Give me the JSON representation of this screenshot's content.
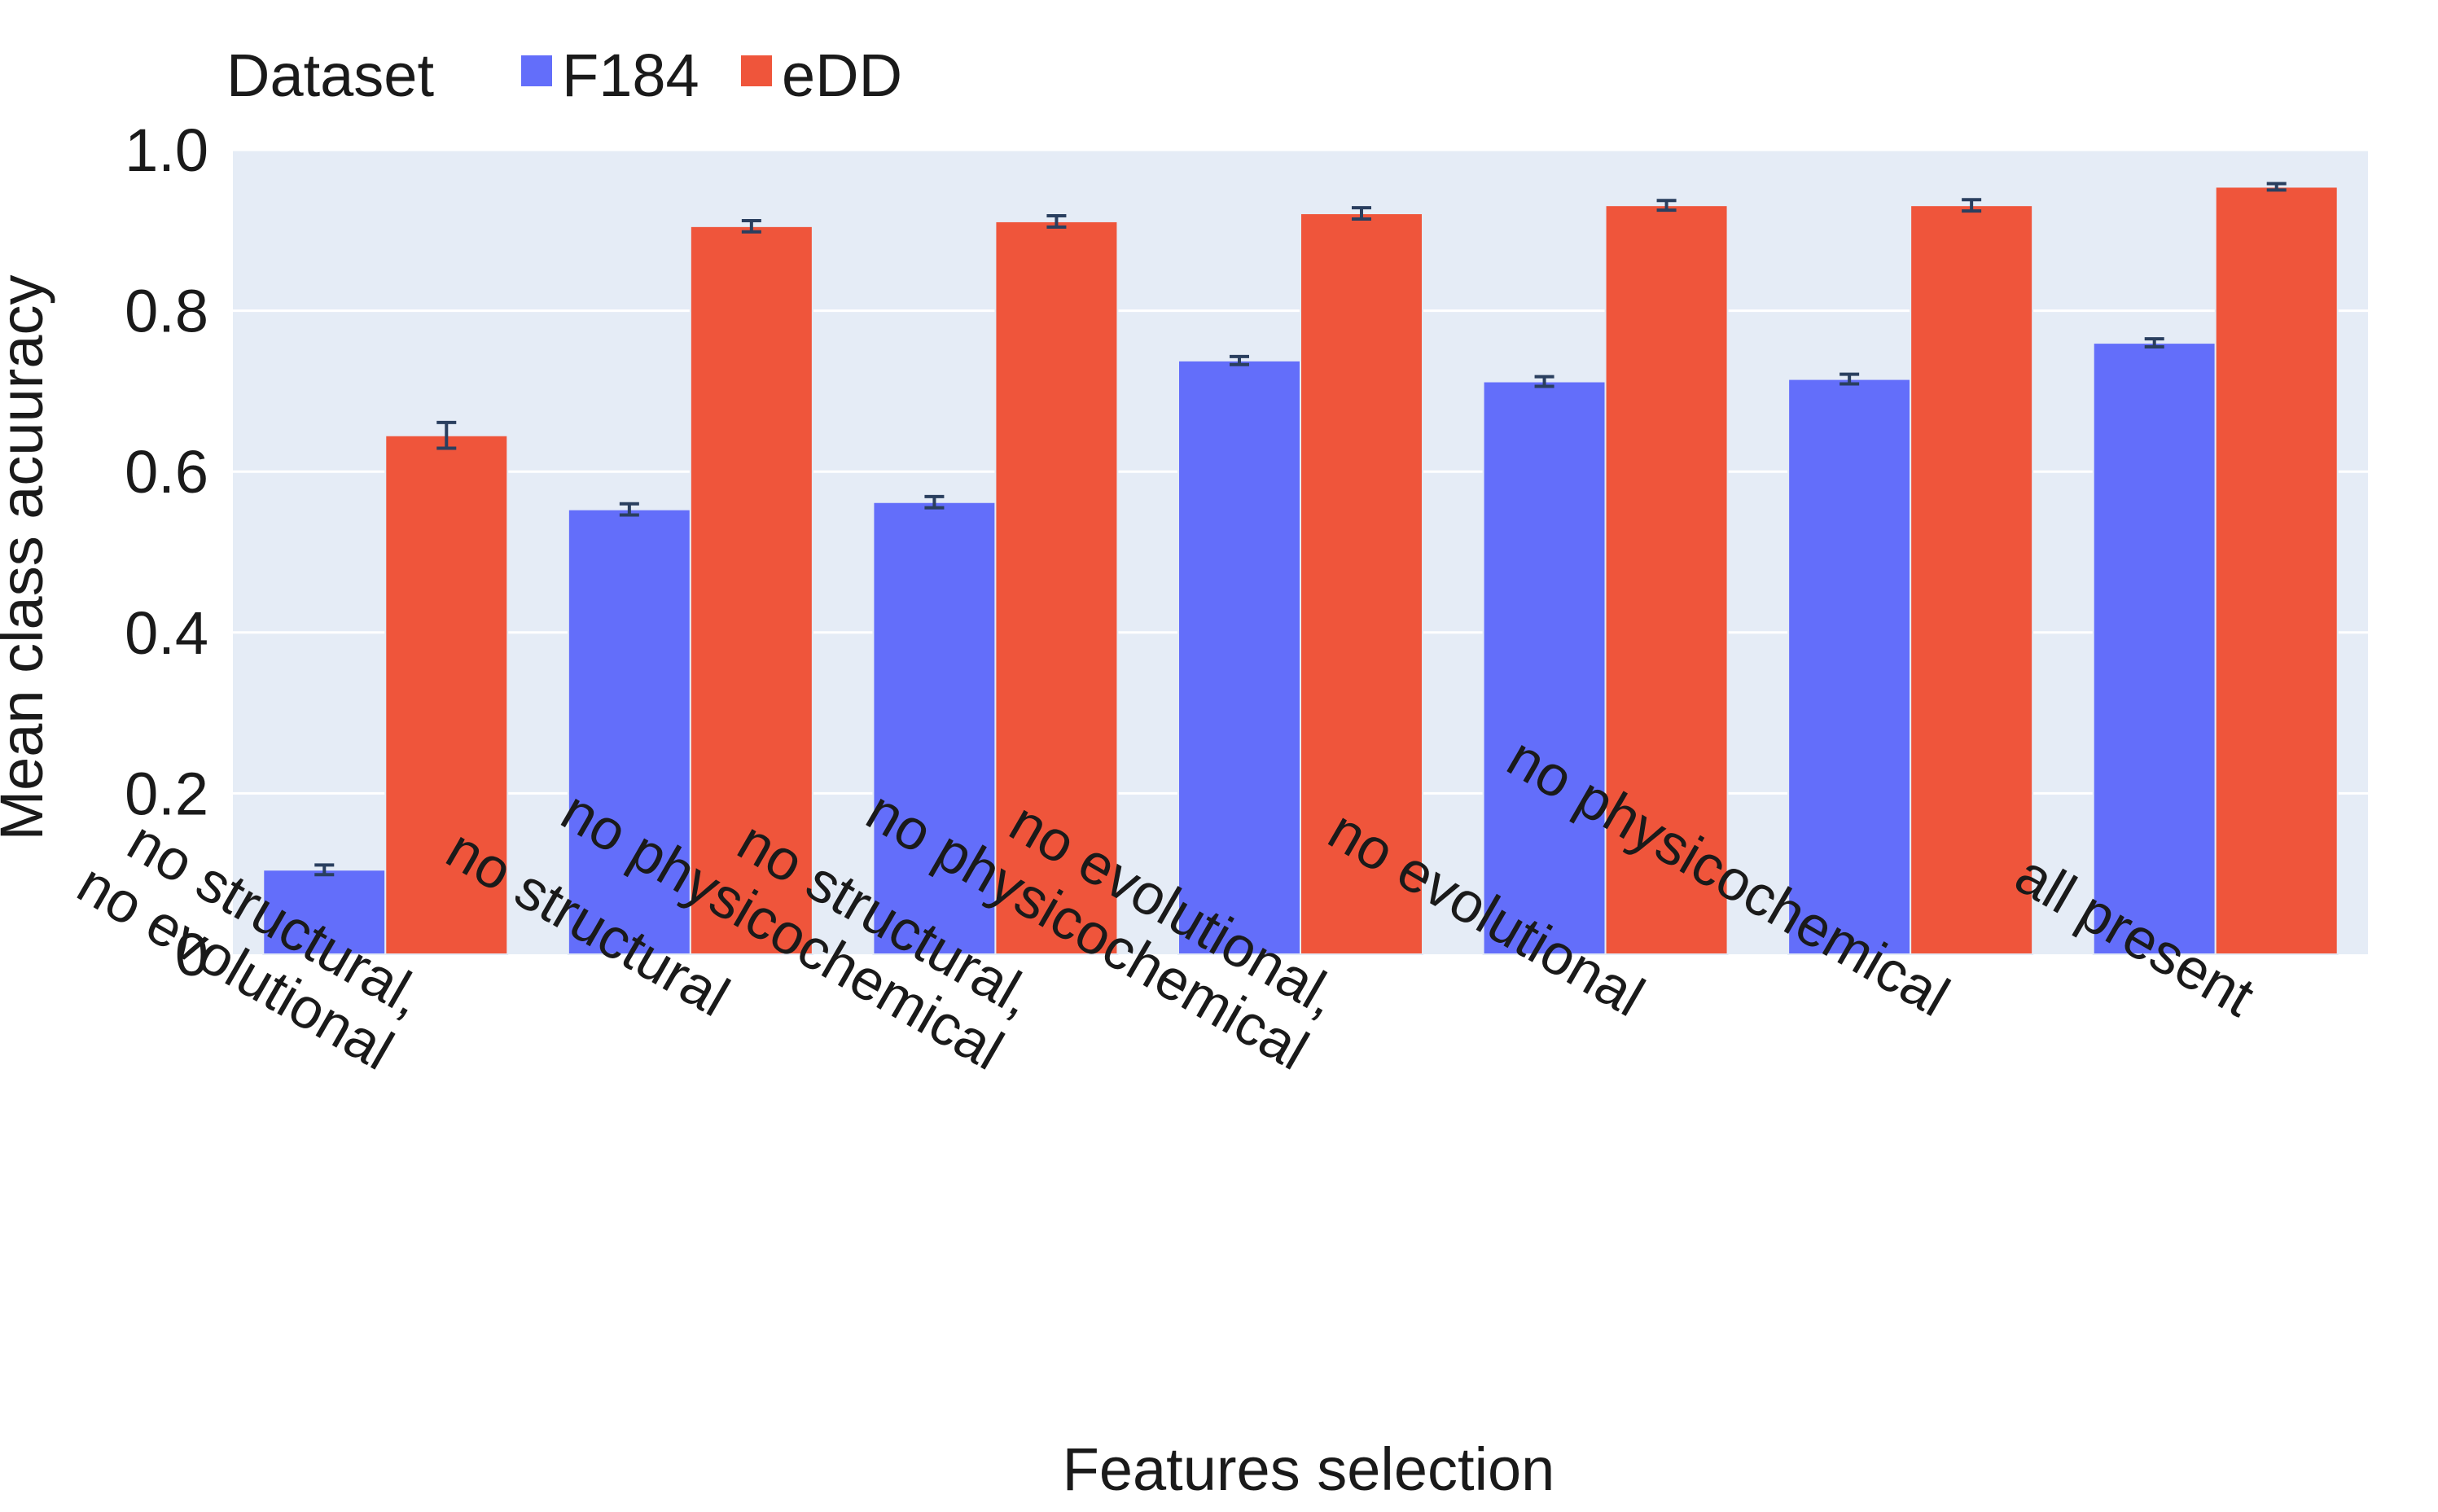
{
  "chart_data": {
    "type": "bar",
    "title": "",
    "xlabel": "Features selection",
    "ylabel": "Mean class acuuracy",
    "ylim": [
      0,
      1.0
    ],
    "yticks": [
      0,
      0.2,
      0.4,
      0.6,
      0.8,
      1.0
    ],
    "ytick_labels": [
      "0",
      "0.2",
      "0.4",
      "0.6",
      "0.8",
      "1.0"
    ],
    "grid": true,
    "legend": {
      "title": "Dataset",
      "position": "top-left"
    },
    "categories": [
      [
        "no structural,",
        "no evolutional"
      ],
      [
        "no structural"
      ],
      [
        "no structural,",
        "no physicochemical"
      ],
      [
        "no evolutional,",
        "no physicochemical"
      ],
      [
        "no evolutional"
      ],
      [
        "no physicochemical"
      ],
      [
        "all present"
      ]
    ],
    "series": [
      {
        "name": "F184",
        "color": "#636efa",
        "values": [
          0.105,
          0.553,
          0.562,
          0.738,
          0.712,
          0.715,
          0.76
        ],
        "errors": [
          0.006,
          0.007,
          0.007,
          0.005,
          0.006,
          0.006,
          0.005
        ]
      },
      {
        "name": "eDD",
        "color": "#ef553b",
        "values": [
          0.645,
          0.905,
          0.911,
          0.921,
          0.931,
          0.931,
          0.954
        ],
        "errors": [
          0.016,
          0.007,
          0.007,
          0.007,
          0.006,
          0.007,
          0.004
        ]
      }
    ],
    "plot_background": "#e5ecf6"
  }
}
